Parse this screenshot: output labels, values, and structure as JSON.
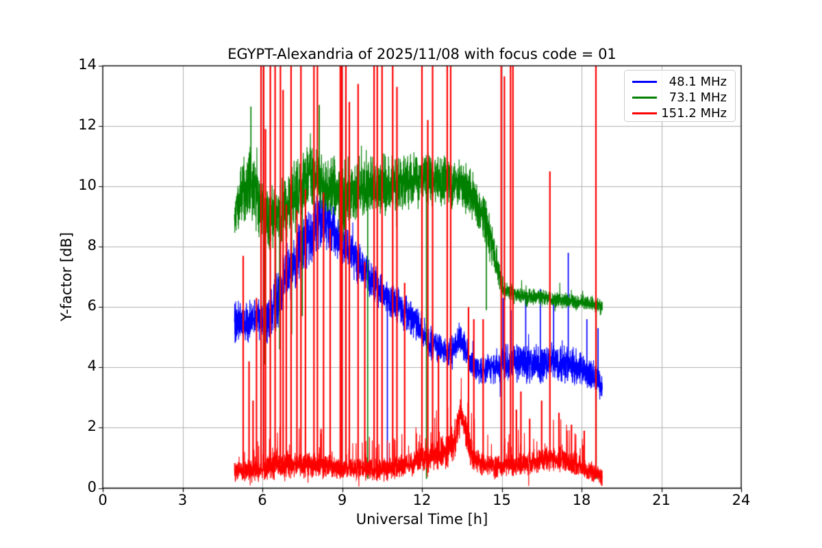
{
  "figure": {
    "background": "#ffffff",
    "text_color": "#000000"
  },
  "chart_data": {
    "type": "line",
    "title": "EGYPT-Alexandria of 2025/11/08 with focus code = 01",
    "xlabel": "Universal Time [h]",
    "ylabel": "Y-factor [dB]",
    "xlim": [
      0,
      24
    ],
    "ylim": [
      0,
      14
    ],
    "xticks": [
      0,
      3,
      6,
      9,
      12,
      15,
      18,
      21,
      24
    ],
    "yticks": [
      0,
      2,
      4,
      6,
      8,
      10,
      12,
      14
    ],
    "grid": true,
    "grid_color": "#b0b0b0",
    "axis_color": "#000000",
    "legend": {
      "position": "upper right",
      "entries": [
        {
          "label": "48.1 MHz",
          "color": "#0000ff"
        },
        {
          "label": "73.1 MHz",
          "color": "#008000"
        },
        {
          "label": "151.2 MHz",
          "color": "#ff0000"
        }
      ]
    },
    "series": [
      {
        "name": "48.1 MHz",
        "color": "#0000ff",
        "t_start": 4.95,
        "t_end": 18.78,
        "profile": [
          [
            4.95,
            5.6,
            0.7
          ],
          [
            5.3,
            5.4,
            0.6
          ],
          [
            5.8,
            5.8,
            0.55
          ],
          [
            6.15,
            5.4,
            0.8
          ],
          [
            6.5,
            6.2,
            0.9
          ],
          [
            7.0,
            7.2,
            0.9
          ],
          [
            7.6,
            8.1,
            0.85
          ],
          [
            8.2,
            8.9,
            0.8
          ],
          [
            8.6,
            8.6,
            0.7
          ],
          [
            9.0,
            8.2,
            0.6
          ],
          [
            9.5,
            7.6,
            0.6
          ],
          [
            10.0,
            7.0,
            0.55
          ],
          [
            10.5,
            6.5,
            0.5
          ],
          [
            11.0,
            6.1,
            0.5
          ],
          [
            11.5,
            5.7,
            0.5
          ],
          [
            12.0,
            5.2,
            0.45
          ],
          [
            12.5,
            4.7,
            0.45
          ],
          [
            13.0,
            4.4,
            0.4
          ],
          [
            13.4,
            5.0,
            0.5
          ],
          [
            13.8,
            4.2,
            0.4
          ],
          [
            14.2,
            3.9,
            0.4
          ],
          [
            15.0,
            4.1,
            0.5
          ],
          [
            16.0,
            4.1,
            0.55
          ],
          [
            17.0,
            4.2,
            0.55
          ],
          [
            17.8,
            4.0,
            0.5
          ],
          [
            18.3,
            3.8,
            0.45
          ],
          [
            18.78,
            3.4,
            0.4
          ]
        ],
        "spikes": [
          [
            10.7,
            0.3
          ],
          [
            15.05,
            6.3
          ],
          [
            15.35,
            5.9
          ],
          [
            15.9,
            6.3
          ],
          [
            16.45,
            6.6
          ],
          [
            16.95,
            6.2
          ],
          [
            17.5,
            7.8
          ],
          [
            18.2,
            5.6
          ],
          [
            18.62,
            5.3
          ]
        ]
      },
      {
        "name": "73.1 MHz",
        "color": "#008000",
        "t_start": 4.95,
        "t_end": 18.78,
        "profile": [
          [
            4.95,
            9.0,
            0.6
          ],
          [
            5.2,
            9.6,
            0.85
          ],
          [
            5.55,
            10.2,
            1.1
          ],
          [
            5.9,
            9.4,
            0.85
          ],
          [
            6.3,
            8.9,
            0.85
          ],
          [
            6.8,
            9.2,
            0.95
          ],
          [
            7.3,
            9.8,
            1.0
          ],
          [
            7.8,
            10.6,
            1.0
          ],
          [
            8.15,
            10.3,
            1.0
          ],
          [
            8.5,
            9.9,
            0.95
          ],
          [
            9.0,
            9.6,
            0.95
          ],
          [
            9.5,
            9.9,
            0.85
          ],
          [
            10.0,
            10.0,
            0.85
          ],
          [
            10.5,
            10.0,
            0.85
          ],
          [
            11.0,
            10.1,
            0.8
          ],
          [
            11.5,
            10.2,
            0.8
          ],
          [
            12.0,
            10.3,
            0.75
          ],
          [
            12.5,
            10.2,
            0.75
          ],
          [
            13.0,
            10.2,
            0.7
          ],
          [
            13.5,
            10.0,
            0.7
          ],
          [
            13.9,
            9.7,
            0.7
          ],
          [
            14.3,
            9.0,
            0.7
          ],
          [
            14.7,
            7.9,
            0.6
          ],
          [
            14.95,
            6.9,
            0.35
          ],
          [
            15.1,
            6.55,
            0.25
          ],
          [
            15.6,
            6.4,
            0.22
          ],
          [
            16.5,
            6.3,
            0.22
          ],
          [
            17.5,
            6.2,
            0.22
          ],
          [
            18.4,
            6.15,
            0.22
          ],
          [
            18.78,
            6.0,
            0.25
          ]
        ],
        "spikes": [
          [
            5.57,
            12.65
          ],
          [
            8.14,
            12.7
          ],
          [
            5.95,
            5.0
          ],
          [
            6.1,
            4.1
          ],
          [
            6.5,
            5.2
          ],
          [
            6.65,
            4.6
          ],
          [
            7.1,
            5.1
          ],
          [
            7.5,
            5.7
          ],
          [
            9.96,
            0.3
          ],
          [
            12.17,
            0.3
          ],
          [
            14.42,
            5.9
          ],
          [
            18.55,
            0.3
          ]
        ]
      },
      {
        "name": "151.2 MHz",
        "color": "#ff0000",
        "t_start": 4.95,
        "t_end": 18.78,
        "profile": [
          [
            4.95,
            0.55,
            0.28
          ],
          [
            6.0,
            0.6,
            0.3
          ],
          [
            6.5,
            0.8,
            0.4
          ],
          [
            7.5,
            0.8,
            0.38
          ],
          [
            8.5,
            0.7,
            0.32
          ],
          [
            9.5,
            0.65,
            0.3
          ],
          [
            10.5,
            0.6,
            0.3
          ],
          [
            11.5,
            0.75,
            0.32
          ],
          [
            12.0,
            0.9,
            0.36
          ],
          [
            12.5,
            1.1,
            0.42
          ],
          [
            12.9,
            1.2,
            0.46
          ],
          [
            13.2,
            1.5,
            0.5
          ],
          [
            13.45,
            2.4,
            0.55
          ],
          [
            13.62,
            2.0,
            0.5
          ],
          [
            13.9,
            1.0,
            0.38
          ],
          [
            14.3,
            0.75,
            0.32
          ],
          [
            15.0,
            0.7,
            0.3
          ],
          [
            15.6,
            0.75,
            0.32
          ],
          [
            16.3,
            0.9,
            0.36
          ],
          [
            16.8,
            1.0,
            0.36
          ],
          [
            17.3,
            0.95,
            0.36
          ],
          [
            17.8,
            0.8,
            0.32
          ],
          [
            18.3,
            0.55,
            0.26
          ],
          [
            18.78,
            0.4,
            0.22
          ]
        ],
        "spikes": [
          [
            5.28,
            7.7
          ],
          [
            5.5,
            4.2
          ],
          [
            5.65,
            2.9
          ],
          [
            5.78,
            6.3
          ],
          [
            5.95,
            14.4
          ],
          [
            6.05,
            14.4
          ],
          [
            6.12,
            11.9
          ],
          [
            6.3,
            14.4
          ],
          [
            6.48,
            14.4
          ],
          [
            6.68,
            14.4
          ],
          [
            6.78,
            13.2
          ],
          [
            6.9,
            9.4
          ],
          [
            7.08,
            14.4
          ],
          [
            7.3,
            9.2
          ],
          [
            7.45,
            14.4
          ],
          [
            7.62,
            9.9
          ],
          [
            7.94,
            14.4
          ],
          [
            8.07,
            14.4
          ],
          [
            8.3,
            9.8
          ],
          [
            8.55,
            8.6
          ],
          [
            8.93,
            14.4
          ],
          [
            8.99,
            14.4
          ],
          [
            9.14,
            14.4
          ],
          [
            9.27,
            12.8
          ],
          [
            9.6,
            13.4
          ],
          [
            9.85,
            7.5
          ],
          [
            10.2,
            14.4
          ],
          [
            10.32,
            14.4
          ],
          [
            10.5,
            14.4
          ],
          [
            10.9,
            14.4
          ],
          [
            11.06,
            13.3
          ],
          [
            11.35,
            6.8
          ],
          [
            12.0,
            14.4
          ],
          [
            12.22,
            12.2
          ],
          [
            12.4,
            14.4
          ],
          [
            12.62,
            4.4
          ],
          [
            12.95,
            14.4
          ],
          [
            13.08,
            14.4
          ],
          [
            13.75,
            6.0
          ],
          [
            13.95,
            5.6
          ],
          [
            14.3,
            5.6
          ],
          [
            14.98,
            14.4
          ],
          [
            15.1,
            13.65
          ],
          [
            15.33,
            14.4
          ],
          [
            15.42,
            14.4
          ],
          [
            15.55,
            2.6
          ],
          [
            15.72,
            3.2
          ],
          [
            16.05,
            2.3
          ],
          [
            16.5,
            2.9
          ],
          [
            16.81,
            10.5
          ],
          [
            17.15,
            2.5
          ],
          [
            17.62,
            2.1
          ],
          [
            18.1,
            1.9
          ],
          [
            18.54,
            14.4
          ],
          [
            18.76,
            0.08
          ]
        ]
      }
    ]
  }
}
